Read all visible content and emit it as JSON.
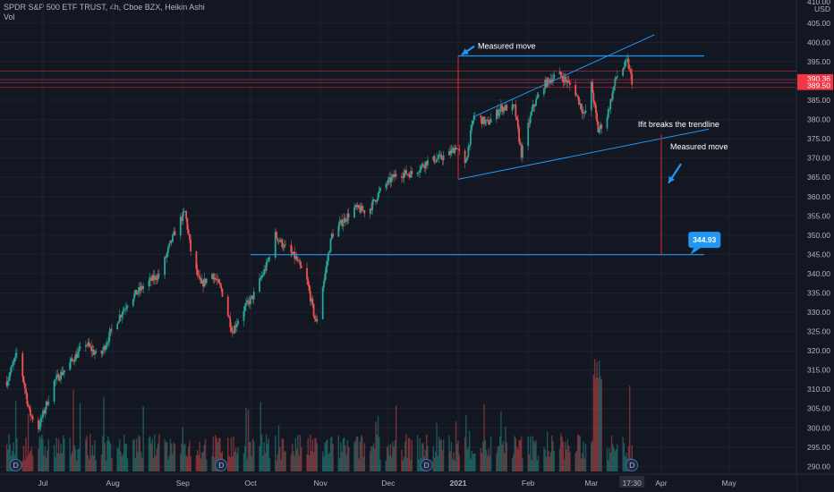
{
  "header": {
    "title": "SPDR S&P 500 ETF TRUST, 4h, Cboe BZX, Heikin Ashi",
    "indicator": "Vol"
  },
  "chart_data": {
    "type": "candlestick",
    "y_axis": {
      "currency": "USD",
      "top_tick_value": "410.00",
      "ticks": [
        405,
        400,
        395,
        390,
        385,
        380,
        375,
        370,
        365,
        360,
        355,
        350,
        345,
        340,
        335,
        330,
        325,
        320,
        315,
        310,
        305,
        300,
        295,
        290
      ],
      "ylim": [
        288,
        411
      ]
    },
    "x_axis": {
      "ticks": [
        {
          "label": "Jul",
          "date": "2020-07-01"
        },
        {
          "label": "Aug",
          "date": "2020-08-01"
        },
        {
          "label": "Sep",
          "date": "2020-09-01"
        },
        {
          "label": "Oct",
          "date": "2020-10-01"
        },
        {
          "label": "Nov",
          "date": "2020-11-01"
        },
        {
          "label": "Dec",
          "date": "2020-12-01"
        },
        {
          "label": "2021",
          "date": "2021-01-01"
        },
        {
          "label": "Feb",
          "date": "2021-02-01"
        },
        {
          "label": "Mar",
          "date": "2021-03-01"
        },
        {
          "label": "17:30",
          "date": "2021-03-19"
        },
        {
          "label": "Apr",
          "date": "2021-04-01"
        },
        {
          "label": "May",
          "date": "2021-05-01"
        }
      ]
    },
    "price_path": [
      [
        "2020-06-15",
        312
      ],
      [
        "2020-06-20",
        320
      ],
      [
        "2020-06-25",
        304
      ],
      [
        "2020-06-29",
        300
      ],
      [
        "2020-07-06",
        312
      ],
      [
        "2020-07-12",
        316
      ],
      [
        "2020-07-20",
        322
      ],
      [
        "2020-07-26",
        318
      ],
      [
        "2020-08-01",
        326
      ],
      [
        "2020-08-08",
        333
      ],
      [
        "2020-08-15",
        337
      ],
      [
        "2020-08-22",
        340
      ],
      [
        "2020-08-26",
        347
      ],
      [
        "2020-08-30",
        353
      ],
      [
        "2020-09-02",
        356
      ],
      [
        "2020-09-05",
        344
      ],
      [
        "2020-09-09",
        337
      ],
      [
        "2020-09-14",
        340
      ],
      [
        "2020-09-18",
        336
      ],
      [
        "2020-09-23",
        325
      ],
      [
        "2020-09-27",
        330
      ],
      [
        "2020-10-02",
        334
      ],
      [
        "2020-10-08",
        342
      ],
      [
        "2020-10-12",
        350
      ],
      [
        "2020-10-16",
        347
      ],
      [
        "2020-10-21",
        344
      ],
      [
        "2020-10-26",
        338
      ],
      [
        "2020-10-30",
        327
      ],
      [
        "2020-11-03",
        340
      ],
      [
        "2020-11-06",
        350
      ],
      [
        "2020-11-10",
        353
      ],
      [
        "2020-11-16",
        357
      ],
      [
        "2020-11-22",
        356
      ],
      [
        "2020-11-28",
        362
      ],
      [
        "2020-12-05",
        366
      ],
      [
        "2020-12-12",
        366
      ],
      [
        "2020-12-18",
        369
      ],
      [
        "2020-12-24",
        370
      ],
      [
        "2020-12-28",
        371
      ],
      [
        "2020-12-31",
        373
      ],
      [
        "2021-01-04",
        368
      ],
      [
        "2021-01-08",
        381
      ],
      [
        "2021-01-14",
        379
      ],
      [
        "2021-01-20",
        383
      ],
      [
        "2021-01-26",
        383
      ],
      [
        "2021-01-29",
        371
      ],
      [
        "2021-02-03",
        383
      ],
      [
        "2021-02-08",
        389
      ],
      [
        "2021-02-14",
        392
      ],
      [
        "2021-02-18",
        390
      ],
      [
        "2021-02-22",
        387
      ],
      [
        "2021-02-26",
        381
      ],
      [
        "2021-03-01",
        389
      ],
      [
        "2021-03-04",
        377
      ],
      [
        "2021-03-08",
        381
      ],
      [
        "2021-03-12",
        391
      ],
      [
        "2021-03-17",
        395
      ],
      [
        "2021-03-19",
        390
      ]
    ],
    "drawings": [
      {
        "kind": "hline",
        "value": 396.5,
        "x_from": "2021-01-01",
        "x_to": "2021-04-20"
      },
      {
        "kind": "hline",
        "value": 344.93,
        "x_from": "2020-10-01",
        "x_to": "2021-04-20",
        "price_label": "344.93"
      },
      {
        "kind": "trendline",
        "name": "channel upper",
        "from": [
          "2021-01-09",
          381
        ],
        "to": [
          "2021-03-29",
          402
        ]
      },
      {
        "kind": "trendline",
        "name": "channel lower / trendline",
        "from": [
          "2021-01-01",
          364.5
        ],
        "to": [
          "2021-04-22",
          377.5
        ]
      },
      {
        "kind": "vline",
        "date": "2021-01-01",
        "from": 364.5,
        "to": 396.5,
        "label": "Measured move"
      },
      {
        "kind": "vline",
        "date": "2021-04-01",
        "from": 344.93,
        "to": 376,
        "label": "Measured move"
      }
    ],
    "annotations": {
      "measured_move_1": "Measured move",
      "breaks_trendline": "Ifit breaks the trendline",
      "measured_move_2": "Measured move",
      "target_badge": "344.93"
    },
    "price_labels": [
      {
        "value": 390.36,
        "text": "390.36",
        "color": "#f23645"
      },
      {
        "value": 389.5,
        "text": "389.50",
        "color": "#f23645"
      }
    ],
    "horizontal_lines_red": [
      392.5,
      390.36,
      389.5,
      388.3
    ],
    "dividend_markers": [
      {
        "date": "2020-06-19",
        "letter": "D"
      },
      {
        "date": "2020-09-18",
        "letter": "D"
      },
      {
        "date": "2020-12-18",
        "letter": "D"
      },
      {
        "date": "2021-03-19",
        "letter": "D"
      }
    ],
    "colors": {
      "background": "#131722",
      "up": "#26a69a",
      "down": "#ef5350",
      "drawing": "#2196f3",
      "measure": "#c62828",
      "label_red": "#f23645",
      "badge": "#2196f3",
      "grid": "#1e2230",
      "axis_text": "#b2b5be"
    }
  }
}
